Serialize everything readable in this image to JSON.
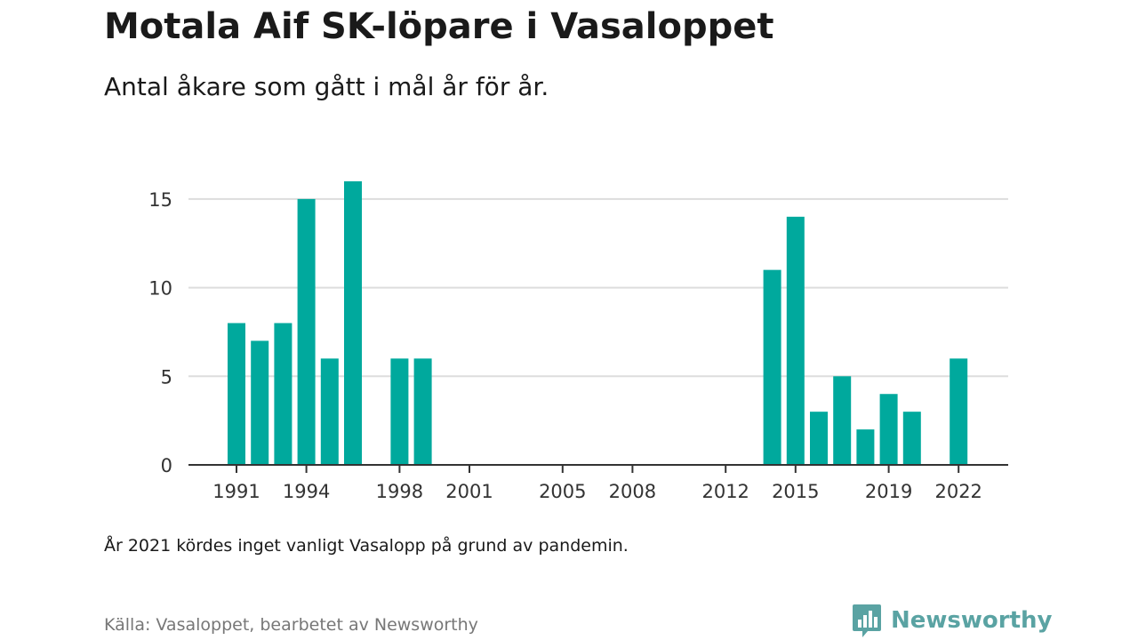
{
  "header": {
    "title": "Motala Aif SK-löpare i Vasaloppet",
    "subtitle": "Antal åkare som gått i mål år för år."
  },
  "footer": {
    "note": "År 2021 kördes inget vanligt Vasalopp på grund av pandemin.",
    "source": "Källa: Vasaloppet, bearbetet av Newsworthy",
    "brand": "Newsworthy"
  },
  "colors": {
    "bar": "#00a99d",
    "grid": "#dddddd",
    "axis": "#333333",
    "brand": "#5aa3a3"
  },
  "chart_data": {
    "type": "bar",
    "title": "Motala Aif SK-löpare i Vasaloppet",
    "subtitle": "Antal åkare som gått i mål år för år.",
    "xlabel": "",
    "ylabel": "",
    "x": [
      1991,
      1992,
      1993,
      1994,
      1995,
      1996,
      1998,
      1999,
      2014,
      2015,
      2016,
      2017,
      2018,
      2019,
      2020,
      2022
    ],
    "values": [
      8,
      7,
      8,
      15,
      6,
      16,
      6,
      6,
      11,
      14,
      3,
      5,
      2,
      4,
      3,
      6
    ],
    "xlim": [
      1990,
      2024
    ],
    "ylim": [
      0,
      17
    ],
    "yticks": [
      0,
      5,
      10,
      15
    ],
    "xticks": [
      1991,
      1994,
      1998,
      2001,
      2005,
      2008,
      2012,
      2015,
      2019,
      2022
    ],
    "grid": true,
    "legend": "none"
  }
}
